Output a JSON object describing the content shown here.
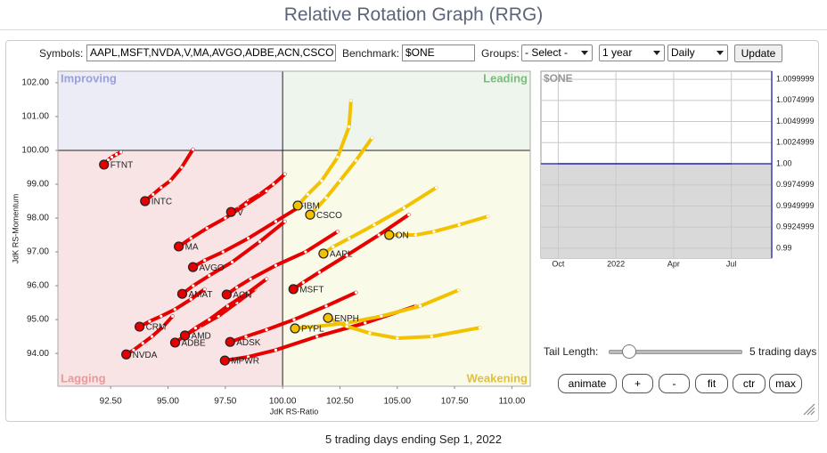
{
  "page": {
    "title": "Relative Rotation Graph (RRG)",
    "controls": {
      "symbols_label": "Symbols:",
      "symbols": "AAPL,MSFT,NVDA,V,MA,AVGO,ADBE,ACN,CSCO",
      "benchmark_label": "Benchmark:",
      "benchmark": "$ONE",
      "groups_label": "Groups:",
      "groups": "- Select -",
      "period": "1 year",
      "frequency": "Daily",
      "update": "Update"
    },
    "tail": {
      "label": "Tail Length:",
      "value": "5 trading days"
    },
    "buttons": [
      "animate",
      "+",
      "-",
      "fit",
      "ctr",
      "max"
    ],
    "footer": "5 trading days ending Sep 1, 2022"
  },
  "chart_data": [
    {
      "type": "rrg",
      "x_label": "JdK RS-Ratio",
      "y_label": "JdK RS-Momentum",
      "annotations": [
        "Improving",
        "Leading",
        "Lagging",
        "Weakening"
      ],
      "crosshair": {
        "x": 100,
        "y": 100
      },
      "xlim": [
        90.2,
        110.8
      ],
      "ylim": [
        93.03,
        102.34
      ],
      "xticks": [
        {
          "value": 92.5,
          "label": "92.50"
        },
        {
          "value": 95,
          "label": "95.00"
        },
        {
          "value": 97.5,
          "label": "97.50"
        },
        {
          "value": 100,
          "label": "100.00"
        },
        {
          "value": 102.5,
          "label": "102.50"
        },
        {
          "value": 105,
          "label": "105.00"
        },
        {
          "value": 107.5,
          "label": "107.50"
        },
        {
          "value": 110,
          "label": "110.00"
        }
      ],
      "yticks": [
        {
          "value": 94,
          "label": "94.00"
        },
        {
          "value": 95,
          "label": "95.00"
        },
        {
          "value": 96,
          "label": "96.00"
        },
        {
          "value": 97,
          "label": "97.00"
        },
        {
          "value": 98,
          "label": "98.00"
        },
        {
          "value": 99,
          "label": "99.00"
        },
        {
          "value": 100,
          "label": "100.00"
        },
        {
          "value": 101,
          "label": "101.00"
        },
        {
          "value": 102,
          "label": "102.00"
        }
      ],
      "series": [
        {
          "name": "FTNT",
          "color": "#e60000",
          "x": [
            92.95,
            92.75,
            92.55,
            92.4,
            92.3,
            92.21
          ],
          "values": [
            99.95,
            99.88,
            99.8,
            99.72,
            99.65,
            99.58
          ]
        },
        {
          "name": "INTC",
          "color": "#e60000",
          "x": [
            96.09,
            95.6,
            95.1,
            94.7,
            94.35,
            94.0
          ],
          "values": [
            100.03,
            99.5,
            99.1,
            98.9,
            98.7,
            98.5
          ]
        },
        {
          "name": "NVDA",
          "color": "#e60000",
          "x": [
            95.2,
            94.8,
            94.3,
            93.9,
            93.5,
            93.18
          ],
          "values": [
            95.1,
            94.8,
            94.5,
            94.3,
            94.1,
            93.97
          ]
        },
        {
          "name": "CRM",
          "color": "#e60000",
          "x": [
            96.6,
            96.0,
            95.3,
            94.7,
            94.2,
            93.76
          ],
          "values": [
            95.9,
            95.6,
            95.3,
            95.1,
            94.95,
            94.79
          ]
        },
        {
          "name": "ADBE",
          "color": "#e60000",
          "x": [
            98.8,
            98.0,
            97.2,
            96.4,
            95.8,
            95.31
          ],
          "values": [
            95.9,
            95.5,
            95.1,
            94.8,
            94.55,
            94.32
          ]
        },
        {
          "name": "AMD",
          "color": "#e60000",
          "x": [
            99.3,
            98.5,
            97.6,
            96.8,
            96.2,
            95.74
          ],
          "values": [
            96.2,
            95.8,
            95.4,
            95.0,
            94.75,
            94.53
          ]
        },
        {
          "name": "ADSK",
          "color": "#e60000",
          "x": [
            103.2,
            101.9,
            100.5,
            99.3,
            98.4,
            97.71
          ],
          "values": [
            95.8,
            95.4,
            95.0,
            94.7,
            94.5,
            94.34
          ]
        },
        {
          "name": "MPWR",
          "color": "#e60000",
          "x": [
            105.8,
            103.6,
            101.5,
            99.7,
            98.5,
            97.48
          ],
          "values": [
            95.4,
            94.9,
            94.5,
            94.1,
            93.9,
            93.79
          ]
        },
        {
          "name": "AMAT",
          "color": "#e60000",
          "x": [
            100.1,
            99.0,
            97.8,
            96.8,
            96.1,
            95.62
          ],
          "values": [
            97.9,
            97.3,
            96.7,
            96.3,
            96.0,
            95.76
          ]
        },
        {
          "name": "V",
          "color": "#e60000",
          "x": [
            100.1,
            99.6,
            99.0,
            98.5,
            98.1,
            97.75
          ],
          "values": [
            99.3,
            99.0,
            98.7,
            98.5,
            98.3,
            98.18
          ]
        },
        {
          "name": "MA",
          "color": "#e60000",
          "x": [
            99.3,
            98.4,
            97.5,
            96.7,
            96.0,
            95.47
          ],
          "values": [
            98.8,
            98.4,
            98.0,
            97.7,
            97.4,
            97.16
          ]
        },
        {
          "name": "AVGO",
          "color": "#e60000",
          "x": [
            100.9,
            99.7,
            98.5,
            97.4,
            96.6,
            96.09
          ],
          "values": [
            98.4,
            97.9,
            97.4,
            97.0,
            96.75,
            96.55
          ]
        },
        {
          "name": "ACN",
          "color": "#e60000",
          "x": [
            102.4,
            101.0,
            99.7,
            98.6,
            98.0,
            97.56
          ],
          "values": [
            97.6,
            97.0,
            96.6,
            96.2,
            95.95,
            95.74
          ]
        },
        {
          "name": "ON",
          "color": "#f2c200",
          "x": [
            108.95,
            107.7,
            106.6,
            105.8,
            105.1,
            104.65
          ],
          "values": [
            98.05,
            97.8,
            97.6,
            97.5,
            97.5,
            97.5
          ]
        },
        {
          "name": "ENPH",
          "color": "#f2c200",
          "x": [
            108.6,
            106.5,
            105.0,
            103.8,
            102.8,
            101.98
          ],
          "values": [
            94.76,
            94.5,
            94.45,
            94.6,
            94.8,
            95.05
          ]
        },
        {
          "name": "PYPL",
          "color": "#f2c200",
          "x": [
            107.67,
            106.0,
            104.3,
            102.8,
            101.5,
            100.54
          ],
          "values": [
            95.87,
            95.4,
            95.1,
            94.9,
            94.8,
            94.74
          ]
        },
        {
          "name": "CSCO",
          "color": "#f2c200",
          "x": [
            103.9,
            103.2,
            102.5,
            101.9,
            101.5,
            101.2
          ],
          "values": [
            100.37,
            99.7,
            99.1,
            98.6,
            98.3,
            98.1
          ]
        },
        {
          "name": "IBM",
          "color": "#f2c200",
          "x": [
            102.98,
            102.9,
            102.4,
            101.7,
            101.1,
            100.66
          ],
          "values": [
            101.47,
            100.7,
            99.8,
            99.1,
            98.7,
            98.37
          ]
        },
        {
          "name": "AAPL",
          "color": "#f2c200",
          "x": [
            106.7,
            105.3,
            104.0,
            102.9,
            102.2,
            101.78
          ],
          "values": [
            98.9,
            98.3,
            97.8,
            97.4,
            97.15,
            96.95
          ]
        },
        {
          "name": "MSFT",
          "color": "#e60000",
          "x": [
            105.5,
            104.2,
            102.8,
            101.6,
            100.9,
            100.47
          ],
          "values": [
            98.1,
            97.5,
            96.9,
            96.4,
            96.1,
            95.9
          ]
        }
      ]
    },
    {
      "type": "line",
      "categories": [
        "Oct",
        "2022",
        "Apr",
        "Jul"
      ],
      "series": [
        {
          "name": "$ONE",
          "color": "#3b3bb0",
          "values": [
            1,
            1,
            1,
            1
          ]
        }
      ],
      "ylim": [
        0.98883,
        1.01096
      ],
      "yticks": [
        {
          "value": 1.0099999,
          "label": "1.0099999"
        },
        {
          "value": 1.0074999,
          "label": "1.0074999"
        },
        {
          "value": 1.0049999,
          "label": "1.0049999"
        },
        {
          "value": 1.0024999,
          "label": "1.0024999"
        },
        {
          "value": 1,
          "label": "1.00"
        },
        {
          "value": 0.9974999,
          "label": "0.9974999"
        },
        {
          "value": 0.9949999,
          "label": "0.9949999"
        },
        {
          "value": 0.9924999,
          "label": "0.9924999"
        },
        {
          "value": 0.99,
          "label": "0.99"
        }
      ],
      "grid": true
    }
  ]
}
